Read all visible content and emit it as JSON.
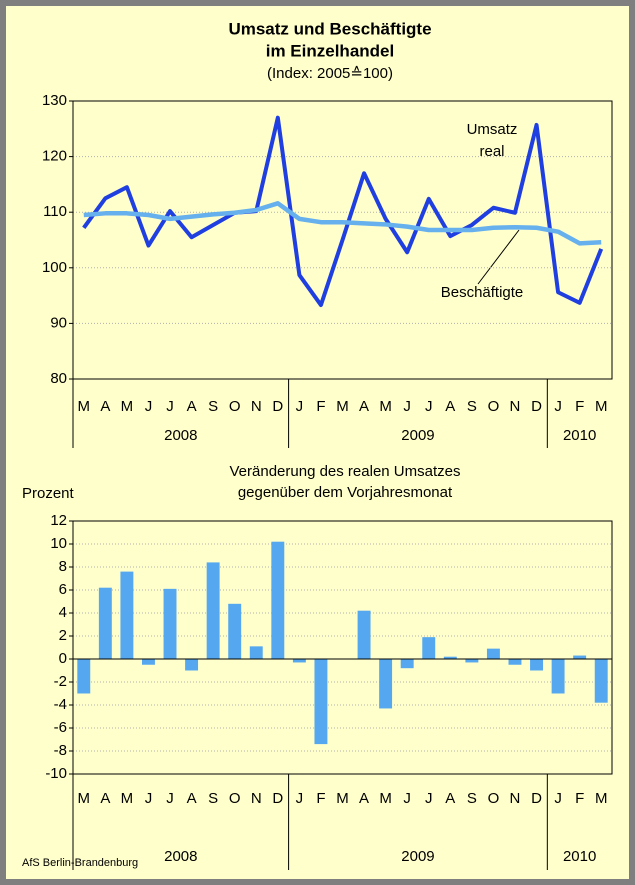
{
  "chart_data": [
    {
      "type": "line",
      "title": [
        "Umsatz und Beschäftigte",
        "im Einzelhandel"
      ],
      "subtitle": "(Index: 2005≙100)",
      "categories": [
        "M",
        "A",
        "M",
        "J",
        "J",
        "A",
        "S",
        "O",
        "N",
        "D",
        "J",
        "F",
        "M",
        "A",
        "M",
        "J",
        "J",
        "A",
        "S",
        "O",
        "N",
        "D",
        "J",
        "F",
        "M"
      ],
      "years": [
        "2008",
        "2009",
        "2010"
      ],
      "year_spans": [
        10,
        12,
        3
      ],
      "ylim": [
        80,
        130
      ],
      "yticks": [
        80,
        90,
        100,
        110,
        120,
        130
      ],
      "grid": true,
      "series": [
        {
          "color": "#1f3fe0",
          "values": [
            107.2,
            112.5,
            114.5,
            104,
            110.2,
            105.5,
            107.7,
            109.9,
            110.2,
            127,
            98.7,
            93.3,
            105,
            117,
            108.8,
            102.8,
            112.4,
            105.7,
            107.7,
            110.8,
            109.9,
            125.7,
            95.6,
            93.7,
            103.4
          ]
        },
        {
          "color": "#66b0ee",
          "values": [
            109.5,
            109.8,
            109.8,
            109.5,
            108.8,
            109.2,
            109.6,
            109.9,
            110.4,
            111.6,
            108.8,
            108.2,
            108.2,
            108,
            107.8,
            107.4,
            106.8,
            106.8,
            106.8,
            107.2,
            107.3,
            107.2,
            106.5,
            104.4,
            104.6
          ]
        }
      ],
      "annotations": [
        "Umsatz",
        "real",
        "Beschäftigte"
      ]
    },
    {
      "type": "bar",
      "title": [
        "Veränderung des realen Umsatzes",
        "gegenüber dem Vorjahresmonat"
      ],
      "ylabel": "Prozent",
      "categories": [
        "M",
        "A",
        "M",
        "J",
        "J",
        "A",
        "S",
        "O",
        "N",
        "D",
        "J",
        "F",
        "M",
        "A",
        "M",
        "J",
        "J",
        "A",
        "S",
        "O",
        "N",
        "D",
        "J",
        "F",
        "M"
      ],
      "years": [
        "2008",
        "2009",
        "2010"
      ],
      "year_spans": [
        10,
        12,
        3
      ],
      "ylim": [
        -10,
        12
      ],
      "yticks": [
        -10,
        -8,
        -6,
        -4,
        -2,
        0,
        2,
        4,
        6,
        8,
        10,
        12
      ],
      "grid": true,
      "color": "#55a8f0",
      "values": [
        -3,
        6.2,
        7.6,
        -0.5,
        6.1,
        -1,
        8.4,
        4.8,
        1.1,
        10.2,
        -0.3,
        -7.4,
        0,
        4.2,
        -4.3,
        -0.8,
        1.9,
        0.2,
        -0.3,
        0.9,
        -0.5,
        -1,
        -3,
        0.3,
        -3.8
      ]
    }
  ],
  "footer": "AfS Berlin-Brandenburg"
}
